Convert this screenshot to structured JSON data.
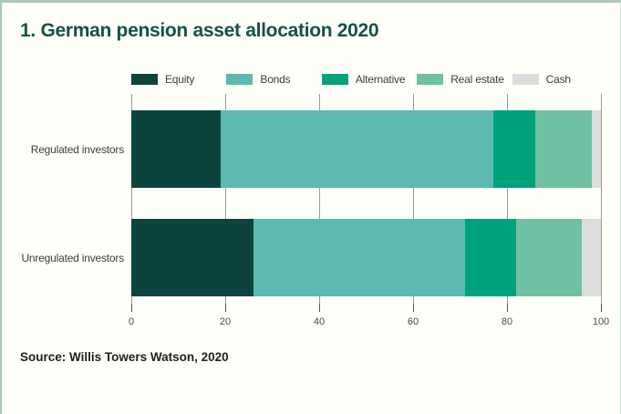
{
  "title": "1. German pension asset allocation 2020",
  "source": "Source: Willis Towers Watson, 2020",
  "colors": {
    "title_text": "#165147",
    "frame_border": "#a9c6bd",
    "background": "#fffffa",
    "gridline": "#9a9a9a",
    "tick_text": "#4a4a4a",
    "label_text": "#3b3b3b"
  },
  "chart_data": {
    "type": "bar",
    "orientation": "horizontal",
    "stacked": true,
    "title": "1. German pension asset allocation 2020",
    "categories": [
      "Regulated investors",
      "Unregulated investors"
    ],
    "series": [
      {
        "name": "Equity",
        "color": "#0c443d",
        "values": [
          19,
          26
        ]
      },
      {
        "name": "Bonds",
        "color": "#5cbab0",
        "values": [
          58,
          45
        ]
      },
      {
        "name": "Alternative",
        "color": "#00a27b",
        "values": [
          9,
          11
        ]
      },
      {
        "name": "Real estate",
        "color": "#70c0a3",
        "values": [
          12,
          14
        ]
      },
      {
        "name": "Cash",
        "color": "#dddddd",
        "values": [
          2,
          4
        ]
      }
    ],
    "xlim": [
      0,
      100
    ],
    "x_ticks": [
      0,
      20,
      40,
      60,
      80,
      100
    ],
    "xlabel": "",
    "ylabel": "",
    "legend_position": "top",
    "grid": "vertical"
  }
}
